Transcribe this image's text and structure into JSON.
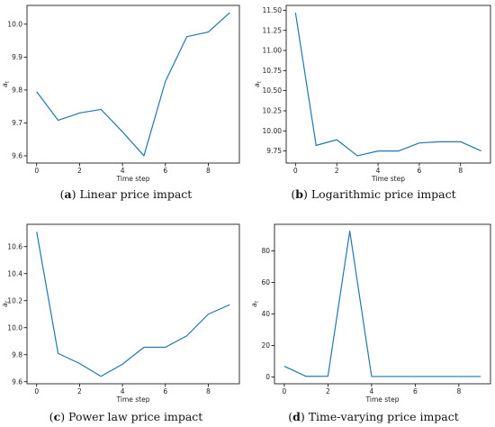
{
  "chart_data": [
    {
      "type": "line",
      "caption_letter": "a",
      "caption_text": "Linear price impact",
      "xlabel": "Time step",
      "ylabel": "a_t",
      "x": [
        0,
        1,
        2,
        3,
        4,
        5,
        6,
        7,
        8,
        9
      ],
      "y": [
        9.795,
        9.708,
        9.73,
        9.741,
        9.673,
        9.6,
        9.826,
        9.962,
        9.976,
        10.035
      ],
      "xlim": [
        -0.45,
        9.45
      ],
      "ylim": [
        9.578,
        10.057
      ],
      "xticks": [
        0,
        2,
        4,
        6,
        8
      ],
      "yticks": [
        9.6,
        9.7,
        9.8,
        9.9,
        10.0
      ],
      "ytick_labels": [
        "9.6",
        "9.7",
        "9.8",
        "9.9",
        "10.0"
      ],
      "color": "#1f77b4"
    },
    {
      "type": "line",
      "caption_letter": "b",
      "caption_text": "Logarithmic price impact",
      "xlabel": "Time step",
      "ylabel": "a_t",
      "x": [
        0,
        1,
        2,
        3,
        4,
        5,
        6,
        7,
        8,
        9
      ],
      "y": [
        11.47,
        9.82,
        9.89,
        9.69,
        9.75,
        9.75,
        9.85,
        9.865,
        9.865,
        9.75
      ],
      "xlim": [
        -0.45,
        9.45
      ],
      "ylim": [
        9.6,
        11.56
      ],
      "xticks": [
        0,
        2,
        4,
        6,
        8
      ],
      "yticks": [
        9.75,
        10.0,
        10.25,
        10.5,
        10.75,
        11.0,
        11.25,
        11.5
      ],
      "ytick_labels": [
        "9.75",
        "10.00",
        "10.25",
        "10.50",
        "10.75",
        "11.00",
        "11.25",
        "11.50"
      ],
      "color": "#1f77b4"
    },
    {
      "type": "line",
      "caption_letter": "c",
      "caption_text": "Power law price impact",
      "xlabel": "Time step",
      "ylabel": "a_t",
      "x": [
        0,
        1,
        2,
        3,
        4,
        5,
        6,
        7,
        8,
        9
      ],
      "y": [
        10.71,
        9.81,
        9.735,
        9.64,
        9.73,
        9.855,
        9.855,
        9.94,
        10.1,
        10.17
      ],
      "xlim": [
        -0.45,
        9.45
      ],
      "ylim": [
        9.585,
        10.765
      ],
      "xticks": [
        0,
        2,
        4,
        6,
        8
      ],
      "yticks": [
        9.6,
        9.8,
        10.0,
        10.2,
        10.4,
        10.6
      ],
      "ytick_labels": [
        "9.6",
        "9.8",
        "10.0",
        "10.2",
        "10.4",
        "10.6"
      ],
      "color": "#1f77b4"
    },
    {
      "type": "line",
      "caption_letter": "d",
      "caption_text": "Time-varying price impact",
      "xlabel": "Time step",
      "ylabel": "a_t",
      "x": [
        0,
        1,
        2,
        3,
        4,
        5,
        6,
        7,
        8,
        9
      ],
      "y": [
        6.8,
        0.4,
        0.5,
        92.5,
        0.3,
        0.3,
        0.3,
        0.3,
        0.3,
        0.3
      ],
      "xlim": [
        -0.45,
        9.45
      ],
      "ylim": [
        -4.3,
        96.8
      ],
      "xticks": [
        0,
        2,
        4,
        6,
        8
      ],
      "yticks": [
        0,
        20,
        40,
        60,
        80
      ],
      "ytick_labels": [
        "0",
        "20",
        "40",
        "60",
        "80"
      ],
      "color": "#1f77b4"
    }
  ]
}
